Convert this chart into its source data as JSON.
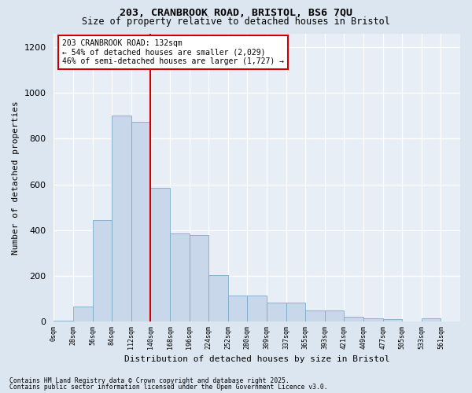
{
  "title1": "203, CRANBROOK ROAD, BRISTOL, BS6 7QU",
  "title2": "Size of property relative to detached houses in Bristol",
  "xlabel": "Distribution of detached houses by size in Bristol",
  "ylabel": "Number of detached properties",
  "bin_labels": [
    "0sqm",
    "28sqm",
    "56sqm",
    "84sqm",
    "112sqm",
    "140sqm",
    "168sqm",
    "196sqm",
    "224sqm",
    "252sqm",
    "280sqm",
    "309sqm",
    "337sqm",
    "365sqm",
    "393sqm",
    "421sqm",
    "449sqm",
    "477sqm",
    "505sqm",
    "533sqm",
    "561sqm"
  ],
  "bar_heights": [
    5,
    65,
    445,
    900,
    875,
    585,
    385,
    380,
    205,
    115,
    115,
    85,
    85,
    50,
    50,
    22,
    15,
    13,
    0,
    15,
    0
  ],
  "bar_color": "#c8d8ea",
  "bar_edge_color": "#7aaac8",
  "annotation_line1": "203 CRANBROOK ROAD: 132sqm",
  "annotation_line2": "← 54% of detached houses are smaller (2,029)",
  "annotation_line3": "46% of semi-detached houses are larger (1,727) →",
  "annotation_box_color": "#ffffff",
  "annotation_box_edge": "#cc0000",
  "vline_color": "#cc0000",
  "footer1": "Contains HM Land Registry data © Crown copyright and database right 2025.",
  "footer2": "Contains public sector information licensed under the Open Government Licence v3.0.",
  "background_color": "#dce6f0",
  "plot_bg_color": "#e8eef5",
  "ylim": [
    0,
    1260
  ],
  "yticks": [
    0,
    200,
    400,
    600,
    800,
    1000,
    1200
  ]
}
